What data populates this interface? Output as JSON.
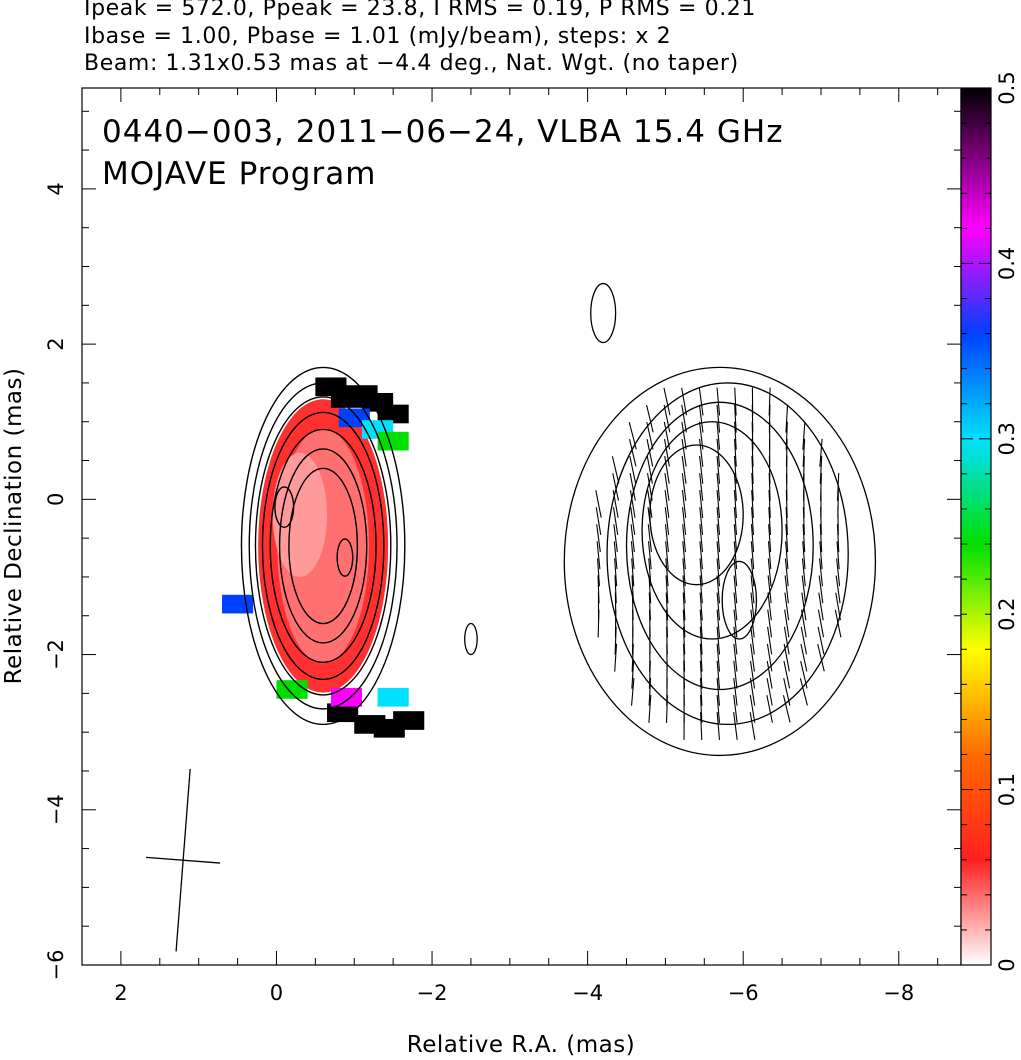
{
  "header": {
    "line1": "Ipeak = 572.0, Ppeak = 23.8, I RMS = 0.19, P RMS = 0.21",
    "line2": "Ibase = 1.00, Pbase = 1.01 (mJy/beam), steps: x 2",
    "line3": "Beam: 1.31x0.53 mas at −4.4 deg., Nat. Wgt. (no taper)"
  },
  "chart_data": {
    "type": "heatmap",
    "title": "0440−003, 2011−06−24, VLBA 15.4 GHz",
    "subtitle": "MOJAVE Program",
    "xlabel": "Relative R.A. (mas)",
    "ylabel": "Relative Declination (mas)",
    "xlim": [
      2.5,
      -8.8
    ],
    "ylim": [
      -6.0,
      5.3
    ],
    "x_ticks": [
      2,
      0,
      -2,
      -4,
      -6,
      -8
    ],
    "x_tick_labels": [
      "2",
      "0",
      "−2",
      "−4",
      "−6",
      "−8"
    ],
    "y_ticks": [
      4,
      2,
      0,
      -2,
      -4,
      -6
    ],
    "y_tick_labels": [
      "4",
      "2",
      "0",
      "−2",
      "−4",
      "−6"
    ],
    "colorbar": {
      "min": 0,
      "max": 0.5,
      "ticks": [
        0,
        0.1,
        0.2,
        0.3,
        0.4,
        0.5
      ],
      "tick_labels": [
        "0",
        "0.1",
        "0.2",
        "0.3",
        "0.4",
        "0.5"
      ],
      "stops": [
        {
          "v": 0.0,
          "color": "#ffffff"
        },
        {
          "v": 0.06,
          "color": "#ff2020"
        },
        {
          "v": 0.12,
          "color": "#ff6a00"
        },
        {
          "v": 0.18,
          "color": "#ffff00"
        },
        {
          "v": 0.24,
          "color": "#00e000"
        },
        {
          "v": 0.3,
          "color": "#00e0ff"
        },
        {
          "v": 0.36,
          "color": "#0040ff"
        },
        {
          "v": 0.42,
          "color": "#ff00ff"
        },
        {
          "v": 0.5,
          "color": "#000000"
        }
      ]
    },
    "left_component": {
      "center": [
        -0.6,
        -0.6
      ],
      "contours": [
        {
          "rx": 1.05,
          "ry": 2.3
        },
        {
          "rx": 0.95,
          "ry": 2.1
        },
        {
          "rx": 0.87,
          "ry": 1.92
        },
        {
          "rx": 0.78,
          "ry": 1.72
        },
        {
          "rx": 0.68,
          "ry": 1.5
        },
        {
          "rx": 0.56,
          "ry": 1.25
        },
        {
          "rx": 0.44,
          "ry": 1.0
        }
      ],
      "peaks": [
        {
          "x": -0.1,
          "y": -0.1,
          "rx": 0.12,
          "ry": 0.26
        },
        {
          "x": -0.88,
          "y": -0.75,
          "rx": 0.1,
          "ry": 0.24
        }
      ],
      "fraction_pixels": [
        {
          "x": -0.9,
          "y": 1.3,
          "v": 0.5
        },
        {
          "x": -1.1,
          "y": 1.35,
          "v": 0.5
        },
        {
          "x": -1.3,
          "y": 1.25,
          "v": 0.5
        },
        {
          "x": -1.5,
          "y": 1.1,
          "v": 0.5
        },
        {
          "x": -0.7,
          "y": 1.45,
          "v": 0.5
        },
        {
          "x": -1.0,
          "y": 1.05,
          "v": 0.33
        },
        {
          "x": -1.3,
          "y": 0.9,
          "v": 0.25
        },
        {
          "x": -1.5,
          "y": 0.75,
          "v": 0.2
        },
        {
          "x": -1.2,
          "y": -2.9,
          "v": 0.5
        },
        {
          "x": -1.45,
          "y": -2.95,
          "v": 0.5
        },
        {
          "x": -1.7,
          "y": -2.85,
          "v": 0.5
        },
        {
          "x": -0.85,
          "y": -2.75,
          "v": 0.5
        },
        {
          "x": -0.9,
          "y": -2.55,
          "v": 0.42
        },
        {
          "x": -1.5,
          "y": -2.55,
          "v": 0.3
        },
        {
          "x": 0.5,
          "y": -1.35,
          "v": 0.36
        },
        {
          "x": -0.2,
          "y": -2.45,
          "v": 0.24
        }
      ]
    },
    "right_component": {
      "contours": [
        {
          "x": -5.7,
          "y": -0.8,
          "rx": 2.0,
          "ry": 2.5
        },
        {
          "x": -5.8,
          "y": -0.7,
          "rx": 1.55,
          "ry": 2.2
        },
        {
          "x": -5.7,
          "y": -0.6,
          "rx": 1.2,
          "ry": 1.85
        },
        {
          "x": -5.6,
          "y": -0.4,
          "rx": 0.9,
          "ry": 1.4
        },
        {
          "x": -5.4,
          "y": -0.2,
          "rx": 0.6,
          "ry": 0.9
        },
        {
          "x": -5.95,
          "y": -1.3,
          "rx": 0.22,
          "ry": 0.5
        }
      ],
      "vector_angle_deg": 85
    },
    "small_features": [
      {
        "x": -4.2,
        "y": 2.4,
        "rx": 0.16,
        "ry": 0.38
      },
      {
        "x": -2.5,
        "y": -1.8,
        "rx": 0.08,
        "ry": 0.2
      }
    ],
    "beam": {
      "x": 1.2,
      "y": -4.65,
      "major_mas": 1.31,
      "minor_mas": 0.53,
      "pa_deg": -4.4
    }
  }
}
